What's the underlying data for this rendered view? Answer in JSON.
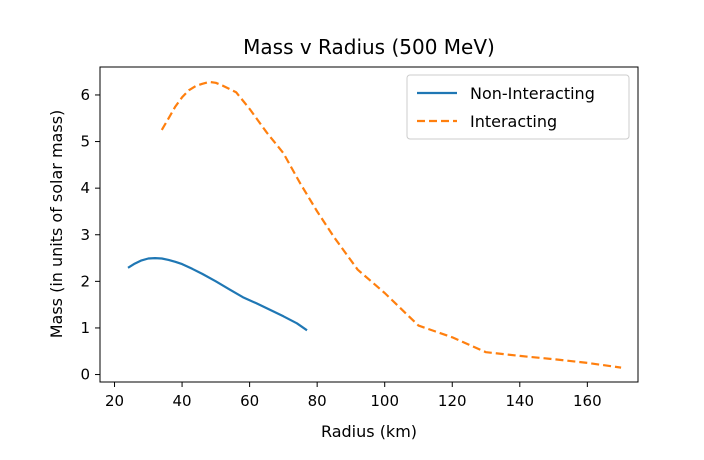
{
  "chart_data": {
    "type": "line",
    "title": "Mass v Radius (500 MeV)",
    "xlabel": "Radius (km)",
    "ylabel": "Mass (in units of solar mass)",
    "xlim": [
      15.7,
      175
    ],
    "ylim": [
      -0.16,
      6.6
    ],
    "xticks": [
      20,
      40,
      60,
      80,
      100,
      120,
      140,
      160
    ],
    "yticks": [
      0,
      1,
      2,
      3,
      4,
      5,
      6
    ],
    "grid": false,
    "legend_position": "top-right",
    "series": [
      {
        "name": "Non-Interacting",
        "color": "#1f77b4",
        "style": "solid",
        "x": [
          24,
          26,
          28,
          30,
          32,
          34,
          36,
          38,
          40,
          43,
          46,
          50,
          54,
          58,
          62,
          66,
          70,
          74,
          77
        ],
        "y": [
          2.29,
          2.38,
          2.45,
          2.49,
          2.5,
          2.49,
          2.46,
          2.42,
          2.37,
          2.27,
          2.16,
          2.0,
          1.83,
          1.66,
          1.53,
          1.39,
          1.25,
          1.1,
          0.95
        ]
      },
      {
        "name": "Interacting",
        "color": "#ff7f0e",
        "style": "dashed",
        "x": [
          34,
          36,
          38,
          40,
          42,
          44,
          46,
          48,
          50,
          52,
          54,
          56,
          60,
          65,
          70,
          75,
          80,
          85,
          92,
          100,
          110,
          120,
          130,
          140,
          150,
          160,
          170
        ],
        "y": [
          5.25,
          5.5,
          5.75,
          5.95,
          6.1,
          6.19,
          6.24,
          6.28,
          6.26,
          6.2,
          6.13,
          6.06,
          5.7,
          5.2,
          4.75,
          4.1,
          3.5,
          2.95,
          2.25,
          1.75,
          1.05,
          0.8,
          0.48,
          0.4,
          0.33,
          0.25,
          0.15
        ]
      }
    ]
  }
}
